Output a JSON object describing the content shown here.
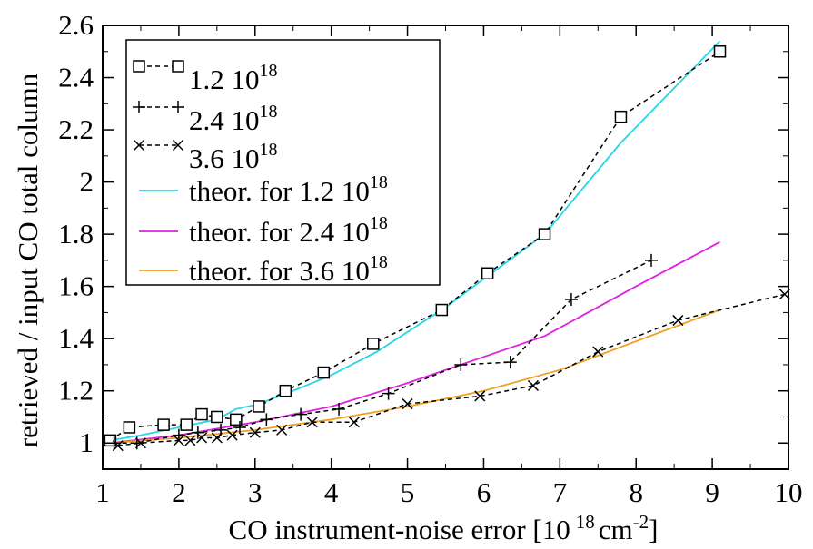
{
  "chart_data": {
    "type": "line",
    "xlabel": "CO instrument-noise error [10",
    "xlabel_exp": "18",
    "xlabel_unit": "cm",
    "xlabel_unit_exp": "-2",
    "xlabel_close": "]",
    "ylabel": "retrieved / input CO total column",
    "xlim": [
      1,
      10
    ],
    "ylim": [
      0.9,
      2.6
    ],
    "xticks": [
      1,
      2,
      3,
      4,
      5,
      6,
      7,
      8,
      9,
      10
    ],
    "yticks": [
      1,
      1.2,
      1.4,
      1.6,
      1.8,
      2,
      2.2,
      2.4,
      2.6
    ],
    "ytick_labels": [
      "1",
      "1.2",
      "1.4",
      "1.6",
      "1.8",
      "2",
      "2.2",
      "2.4",
      "2.6"
    ],
    "grid": false,
    "legend_position": "top-left",
    "series": [
      {
        "name": "1.2 10",
        "name_exp": "18",
        "marker": "square",
        "dashed": true,
        "color": "#000000",
        "x": [
          1.1,
          1.35,
          1.8,
          2.1,
          2.3,
          2.5,
          2.75,
          3.05,
          3.4,
          3.9,
          4.55,
          5.45,
          6.05,
          6.8,
          7.8,
          9.1
        ],
        "y": [
          1.01,
          1.06,
          1.07,
          1.07,
          1.11,
          1.1,
          1.09,
          1.14,
          1.2,
          1.27,
          1.38,
          1.51,
          1.65,
          1.8,
          2.25,
          2.5
        ]
      },
      {
        "name": "2.4 10",
        "name_exp": "18",
        "marker": "plus",
        "dashed": true,
        "color": "#000000",
        "x": [
          1.15,
          1.45,
          2.0,
          2.25,
          2.55,
          2.8,
          3.15,
          3.6,
          4.1,
          4.75,
          5.7,
          6.35,
          7.15,
          8.2
        ],
        "y": [
          1.0,
          1.0,
          1.03,
          1.04,
          1.05,
          1.06,
          1.09,
          1.11,
          1.13,
          1.19,
          1.3,
          1.31,
          1.55,
          1.7
        ]
      },
      {
        "name": "3.6 10",
        "name_exp": "18",
        "marker": "cross",
        "dashed": true,
        "color": "#000000",
        "x": [
          1.2,
          1.5,
          2.0,
          2.15,
          2.3,
          2.5,
          2.7,
          3.0,
          3.35,
          3.75,
          4.3,
          5.0,
          5.95,
          6.65,
          7.5,
          8.55,
          9.95
        ],
        "y": [
          0.99,
          1.0,
          1.01,
          1.01,
          1.02,
          1.02,
          1.03,
          1.04,
          1.05,
          1.08,
          1.08,
          1.15,
          1.18,
          1.22,
          1.35,
          1.47,
          1.57
        ]
      },
      {
        "name": "theor. for 1.2 10",
        "name_exp": "18",
        "marker": "none",
        "dashed": false,
        "color": "#22d8e8",
        "x": [
          1.1,
          1.5,
          2.0,
          2.5,
          2.75,
          3.05,
          3.5,
          4.0,
          4.6,
          5.5,
          6.1,
          6.8,
          7.8,
          9.1
        ],
        "y": [
          1.01,
          1.03,
          1.06,
          1.09,
          1.13,
          1.15,
          1.2,
          1.26,
          1.35,
          1.52,
          1.65,
          1.8,
          2.15,
          2.54
        ]
      },
      {
        "name": "theor. for 2.4 10",
        "name_exp": "18",
        "marker": "none",
        "dashed": false,
        "color": "#e020e0",
        "x": [
          1.1,
          2.0,
          3.0,
          4.0,
          5.0,
          6.0,
          6.8,
          8.0,
          9.1
        ],
        "y": [
          1.0,
          1.03,
          1.08,
          1.14,
          1.23,
          1.33,
          1.41,
          1.6,
          1.77
        ]
      },
      {
        "name": "theor. for 3.6 10",
        "name_exp": "18",
        "marker": "none",
        "dashed": false,
        "color": "#f0a020",
        "x": [
          1.1,
          2.0,
          3.0,
          4.0,
          5.0,
          6.0,
          7.0,
          8.0,
          9.1
        ],
        "y": [
          1.0,
          1.02,
          1.05,
          1.09,
          1.14,
          1.2,
          1.28,
          1.39,
          1.51
        ]
      }
    ]
  }
}
